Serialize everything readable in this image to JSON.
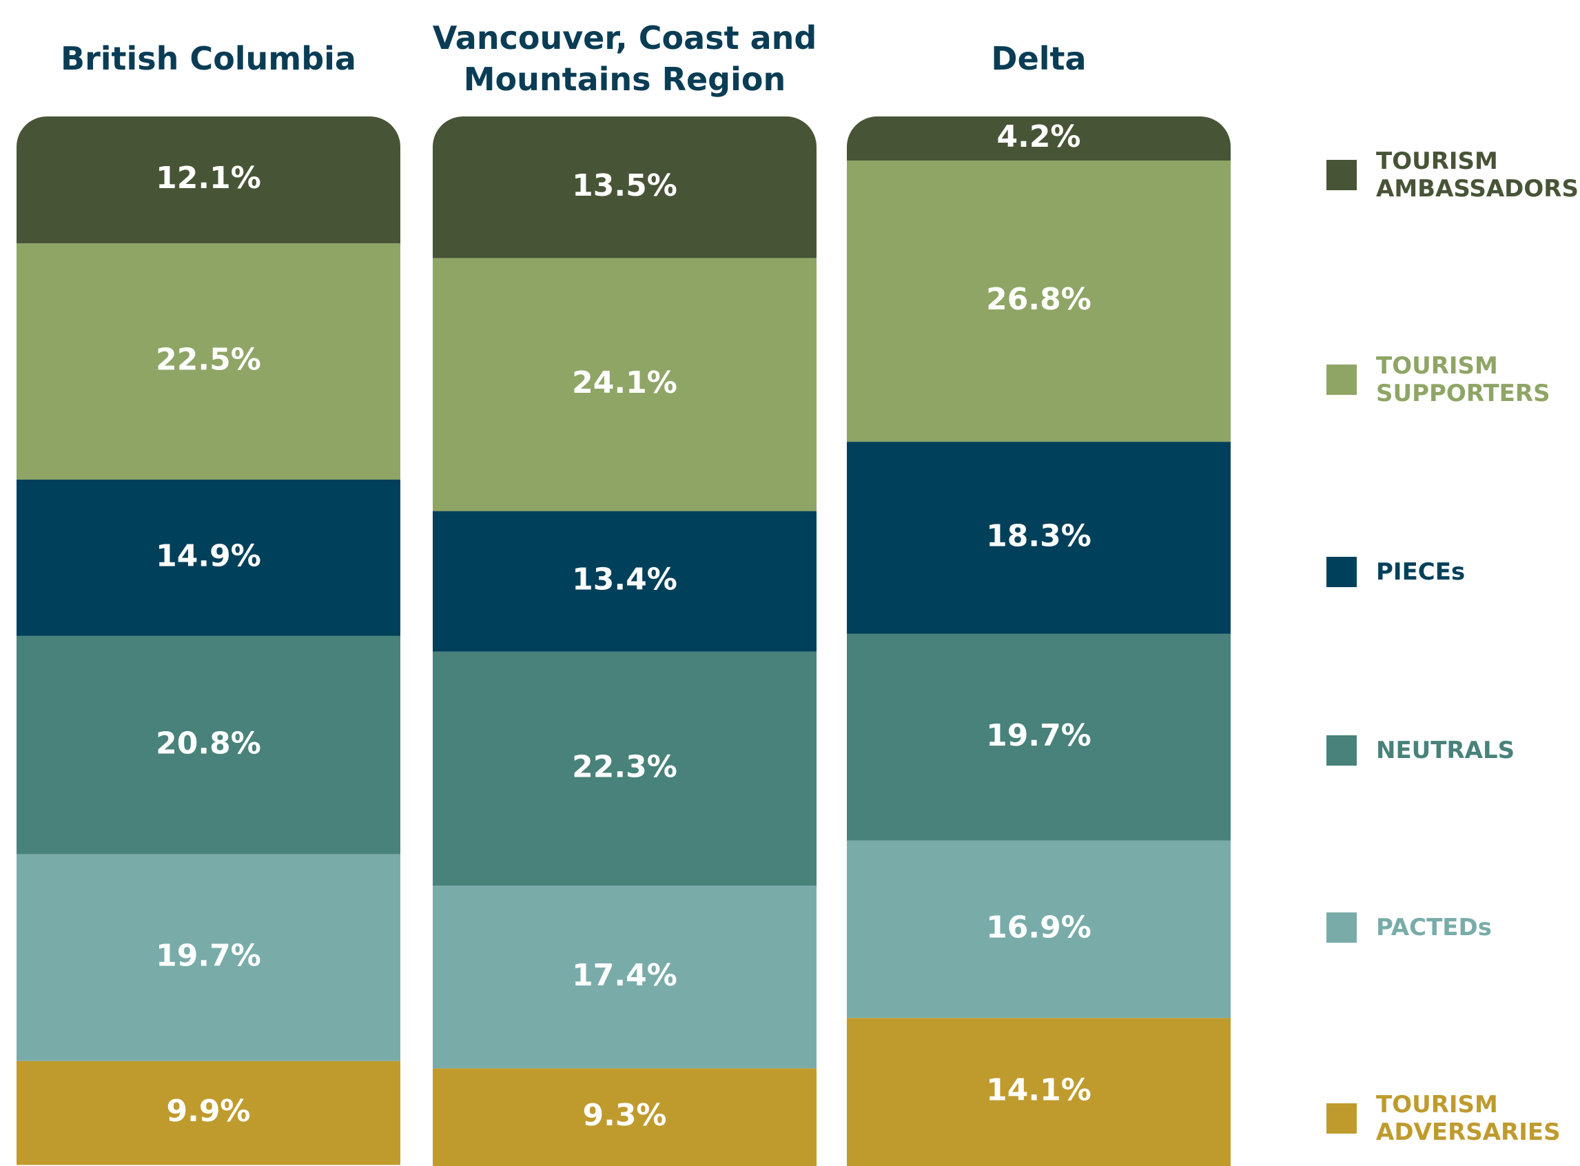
{
  "chart_data": {
    "type": "stacked-bar",
    "categories": [
      "British Columbia",
      "Vancouver, Coast and Mountains Region",
      "Delta"
    ],
    "ylim": [
      0,
      100
    ],
    "series": [
      {
        "name": "TOURISM AMBASSADORS",
        "color": "#475436",
        "values": [
          12.1,
          13.5,
          4.2
        ],
        "value_labels": [
          "12.1%",
          "13.5%",
          "4.2%"
        ]
      },
      {
        "name": "TOURISM SUPPORTERS",
        "color": "#8fa566",
        "values": [
          22.5,
          24.1,
          26.8
        ],
        "value_labels": [
          "22.5%",
          "24.1%",
          "26.8%"
        ]
      },
      {
        "name": "PIECEs",
        "color": "#00405a",
        "values": [
          14.9,
          13.4,
          18.3
        ],
        "value_labels": [
          "14.9%",
          "13.4%",
          "18.3%"
        ]
      },
      {
        "name": "NEUTRALS",
        "color": "#48827a",
        "values": [
          20.8,
          22.3,
          19.7
        ],
        "value_labels": [
          "20.8%",
          "22.3%",
          "19.7%"
        ]
      },
      {
        "name": "PACTEDs",
        "color": "#79aca9",
        "values": [
          19.7,
          17.4,
          16.9
        ],
        "value_labels": [
          "19.7%",
          "17.4%",
          "16.9%"
        ]
      },
      {
        "name": "TOURISM ADVERSARIES",
        "color": "#bf9b2e",
        "values": [
          9.9,
          9.3,
          14.1
        ],
        "value_labels": [
          "9.9%",
          "9.3%",
          "14.1%"
        ]
      }
    ],
    "legend": "right"
  }
}
